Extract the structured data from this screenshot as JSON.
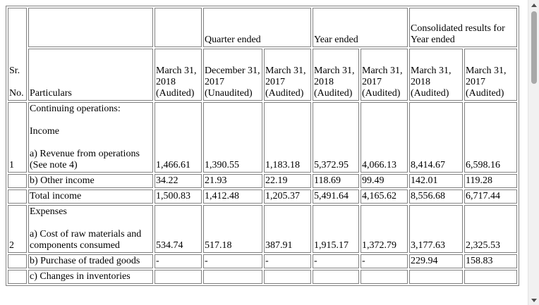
{
  "header": {
    "sr_line1": "Sr.",
    "sr_line2": "No.",
    "particulars": "Particulars",
    "quarter_ended": "Quarter ended",
    "year_ended": "Year ended",
    "consolidated": "Consolidated results for Year ended",
    "columns": [
      {
        "date": "March 31, 2018",
        "status": "(Audited)"
      },
      {
        "date": "December 31, 2017",
        "status": "(Unaudited)"
      },
      {
        "date": "March 31, 2017",
        "status": "(Audited)"
      },
      {
        "date": "March 31, 2018",
        "status": "(Audited)"
      },
      {
        "date": "March 31, 2017",
        "status": "(Audited)"
      },
      {
        "date": "March 31, 2018",
        "status": "(Audited)"
      },
      {
        "date": "March 31, 2017",
        "status": "(Audited)"
      }
    ]
  },
  "rows": {
    "continuing": "Continuing operations:",
    "income": "Income",
    "revenue": {
      "sr": "1",
      "label": "a) Revenue from operations (See note 4)",
      "values": [
        "1,466.61",
        "1,390.55",
        "1,183.18",
        "5,372.95",
        "4,066.13",
        "8,414.67",
        "6,598.16"
      ]
    },
    "other_income": {
      "label": "b) Other income",
      "values": [
        "34.22",
        "21.93",
        "22.19",
        "118.69",
        "99.49",
        "142.01",
        "119.28"
      ]
    },
    "total_income": {
      "label": "Total income",
      "values": [
        "1,500.83",
        "1,412.48",
        "1,205.37",
        "5,491.64",
        "4,165.62",
        "8,556.68",
        "6,717.44"
      ]
    },
    "expenses": "Expenses",
    "raw_materials": {
      "sr": "2",
      "label": "a) Cost of raw materials and components consumed",
      "values": [
        "534.74",
        "517.18",
        "387.91",
        "1,915.17",
        "1,372.79",
        "3,177.63",
        "2,325.53"
      ]
    },
    "traded_goods": {
      "label": "b) Purchase of traded goods",
      "values": [
        "-",
        "-",
        "-",
        "-",
        "-",
        "229.94",
        "158.83"
      ]
    },
    "changes_partial": "c) Changes in inventories"
  }
}
